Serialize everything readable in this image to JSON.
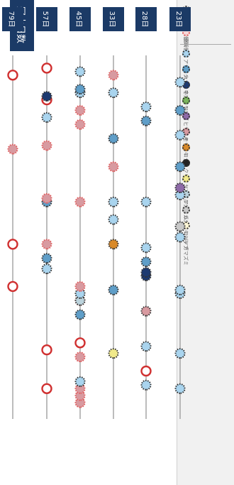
{
  "legend": {
    "status": [
      {
        "label": "生存個体",
        "style": "alive",
        "fill": "#e8e8e8"
      },
      {
        "label": "枯死個体",
        "style": "dead",
        "fill": "#ffffff"
      },
      {
        "label": "衰弱個体",
        "style": "weak",
        "fill": "#f6d8d8"
      }
    ],
    "species": [
      {
        "label": "アラカシ",
        "color": "#a9d4ee"
      },
      {
        "label": "カナメモチ",
        "color": "#5f9ec8"
      },
      {
        "label": "ネズミモチ",
        "color": "#1d3a70"
      },
      {
        "label": "ソヨゴ",
        "color": "#7cb55c"
      },
      {
        "label": "ヒサカキ",
        "color": "#8e6aa8"
      },
      {
        "label": "モチノキ",
        "color": "#d89aa0"
      },
      {
        "label": "コナラ",
        "color": "#d98a2a"
      },
      {
        "label": "クリ",
        "color": "#222222"
      },
      {
        "label": "ヤマウルシ",
        "color": "#f0e98a"
      },
      {
        "label": "アカメガシワ",
        "color": "#bcd3dc"
      },
      {
        "label": "ムラサキシキブ",
        "color": "#c8c8c8"
      },
      {
        "label": "コバノガマズミ",
        "color": "#fff7d6"
      }
    ]
  },
  "axis": {
    "title": "冠水日数"
  },
  "rows": [
    {
      "day": "23日",
      "points": [
        {
          "v": 0.93,
          "s": "alive",
          "c": "#a9d4ee"
        },
        {
          "v": 0.83,
          "s": "alive",
          "c": "#a9d4ee"
        },
        {
          "v": 0.66,
          "s": "alive",
          "c": "#a9d4ee"
        },
        {
          "v": 0.65,
          "s": "alive",
          "c": "#a9d4ee"
        },
        {
          "v": 0.5,
          "s": "alive",
          "c": "#a9d4ee"
        },
        {
          "v": 0.47,
          "s": "alive",
          "c": "#c8c8c8"
        },
        {
          "v": 0.38,
          "s": "alive",
          "c": "#a9d4ee"
        },
        {
          "v": 0.36,
          "s": "alive",
          "c": "#8e6aa8"
        },
        {
          "v": 0.3,
          "s": "alive",
          "c": "#5f9ec8"
        },
        {
          "v": 0.21,
          "s": "alive",
          "c": "#a9d4ee"
        },
        {
          "v": 0.14,
          "s": "alive",
          "c": "#5f9ec8"
        },
        {
          "v": 0.06,
          "s": "alive",
          "c": "#a9d4ee"
        }
      ]
    },
    {
      "day": "28日",
      "points": [
        {
          "v": 0.92,
          "s": "alive",
          "c": "#a9d4ee"
        },
        {
          "v": 0.88,
          "s": "dead",
          "c": "#ffffff"
        },
        {
          "v": 0.81,
          "s": "alive",
          "c": "#a9d4ee"
        },
        {
          "v": 0.71,
          "s": "alive",
          "c": "#d89aa0"
        },
        {
          "v": 0.61,
          "s": "alive",
          "c": "#1d3a70"
        },
        {
          "v": 0.6,
          "s": "alive",
          "c": "#1d3a70"
        },
        {
          "v": 0.57,
          "s": "alive",
          "c": "#5f9ec8"
        },
        {
          "v": 0.53,
          "s": "alive",
          "c": "#a9d4ee"
        },
        {
          "v": 0.4,
          "s": "alive",
          "c": "#a9d4ee"
        },
        {
          "v": 0.17,
          "s": "alive",
          "c": "#5f9ec8"
        },
        {
          "v": 0.13,
          "s": "alive",
          "c": "#a9d4ee"
        }
      ]
    },
    {
      "day": "33日",
      "points": [
        {
          "v": 0.83,
          "s": "alive",
          "c": "#f0e98a"
        },
        {
          "v": 0.65,
          "s": "alive",
          "c": "#5f9ec8"
        },
        {
          "v": 0.52,
          "s": "alive",
          "c": "#d98a2a"
        },
        {
          "v": 0.45,
          "s": "alive",
          "c": "#a9d4ee"
        },
        {
          "v": 0.4,
          "s": "alive",
          "c": "#a9d4ee"
        },
        {
          "v": 0.3,
          "s": "weak",
          "c": "#d89aa0"
        },
        {
          "v": 0.22,
          "s": "alive",
          "c": "#5f9ec8"
        },
        {
          "v": 0.09,
          "s": "alive",
          "c": "#a9d4ee"
        },
        {
          "v": 0.04,
          "s": "weak",
          "c": "#d89aa0"
        }
      ]
    },
    {
      "day": "45日",
      "points": [
        {
          "v": 0.97,
          "s": "weak",
          "c": "#d89aa0"
        },
        {
          "v": 0.95,
          "s": "weak",
          "c": "#d89aa0"
        },
        {
          "v": 0.93,
          "s": "weak",
          "c": "#d89aa0"
        },
        {
          "v": 0.91,
          "s": "alive",
          "c": "#a9d4ee"
        },
        {
          "v": 0.84,
          "s": "weak",
          "c": "#d89aa0"
        },
        {
          "v": 0.8,
          "s": "dead",
          "c": "#ffffff"
        },
        {
          "v": 0.72,
          "s": "alive",
          "c": "#5f9ec8"
        },
        {
          "v": 0.68,
          "s": "weak",
          "c": "#d89aa0"
        },
        {
          "v": 0.68,
          "s": "alive",
          "c": "#bcd3dc"
        },
        {
          "v": 0.66,
          "s": "alive",
          "c": "#a9d4ee"
        },
        {
          "v": 0.64,
          "s": "weak",
          "c": "#d89aa0"
        },
        {
          "v": 0.4,
          "s": "weak",
          "c": "#d89aa0"
        },
        {
          "v": 0.18,
          "s": "weak",
          "c": "#d89aa0"
        },
        {
          "v": 0.14,
          "s": "weak",
          "c": "#d89aa0"
        },
        {
          "v": 0.09,
          "s": "alive",
          "c": "#a9d4ee"
        },
        {
          "v": 0.08,
          "s": "alive",
          "c": "#5f9ec8"
        },
        {
          "v": 0.03,
          "s": "alive",
          "c": "#a9d4ee"
        }
      ]
    },
    {
      "day": "57日",
      "points": [
        {
          "v": 0.93,
          "s": "dead",
          "c": "#ffffff"
        },
        {
          "v": 0.82,
          "s": "dead",
          "c": "#ffffff"
        },
        {
          "v": 0.59,
          "s": "alive",
          "c": "#a9d4ee"
        },
        {
          "v": 0.56,
          "s": "alive",
          "c": "#5f9ec8"
        },
        {
          "v": 0.52,
          "s": "weak",
          "c": "#d89aa0"
        },
        {
          "v": 0.4,
          "s": "alive",
          "c": "#5f9ec8"
        },
        {
          "v": 0.39,
          "s": "weak",
          "c": "#d89aa0"
        },
        {
          "v": 0.24,
          "s": "weak",
          "c": "#d89aa0"
        },
        {
          "v": 0.16,
          "s": "alive",
          "c": "#a9d4ee"
        },
        {
          "v": 0.11,
          "s": "dead",
          "c": "#ffffff"
        },
        {
          "v": 0.1,
          "s": "alive",
          "c": "#1d3a70"
        },
        {
          "v": 0.02,
          "s": "dead",
          "c": "#ffffff"
        }
      ]
    },
    {
      "day": "79日",
      "points": [
        {
          "v": 0.64,
          "s": "dead",
          "c": "#ffffff"
        },
        {
          "v": 0.52,
          "s": "dead",
          "c": "#ffffff"
        },
        {
          "v": 0.25,
          "s": "weak",
          "c": "#d89aa0"
        },
        {
          "v": 0.04,
          "s": "dead",
          "c": "#ffffff"
        }
      ]
    }
  ]
}
